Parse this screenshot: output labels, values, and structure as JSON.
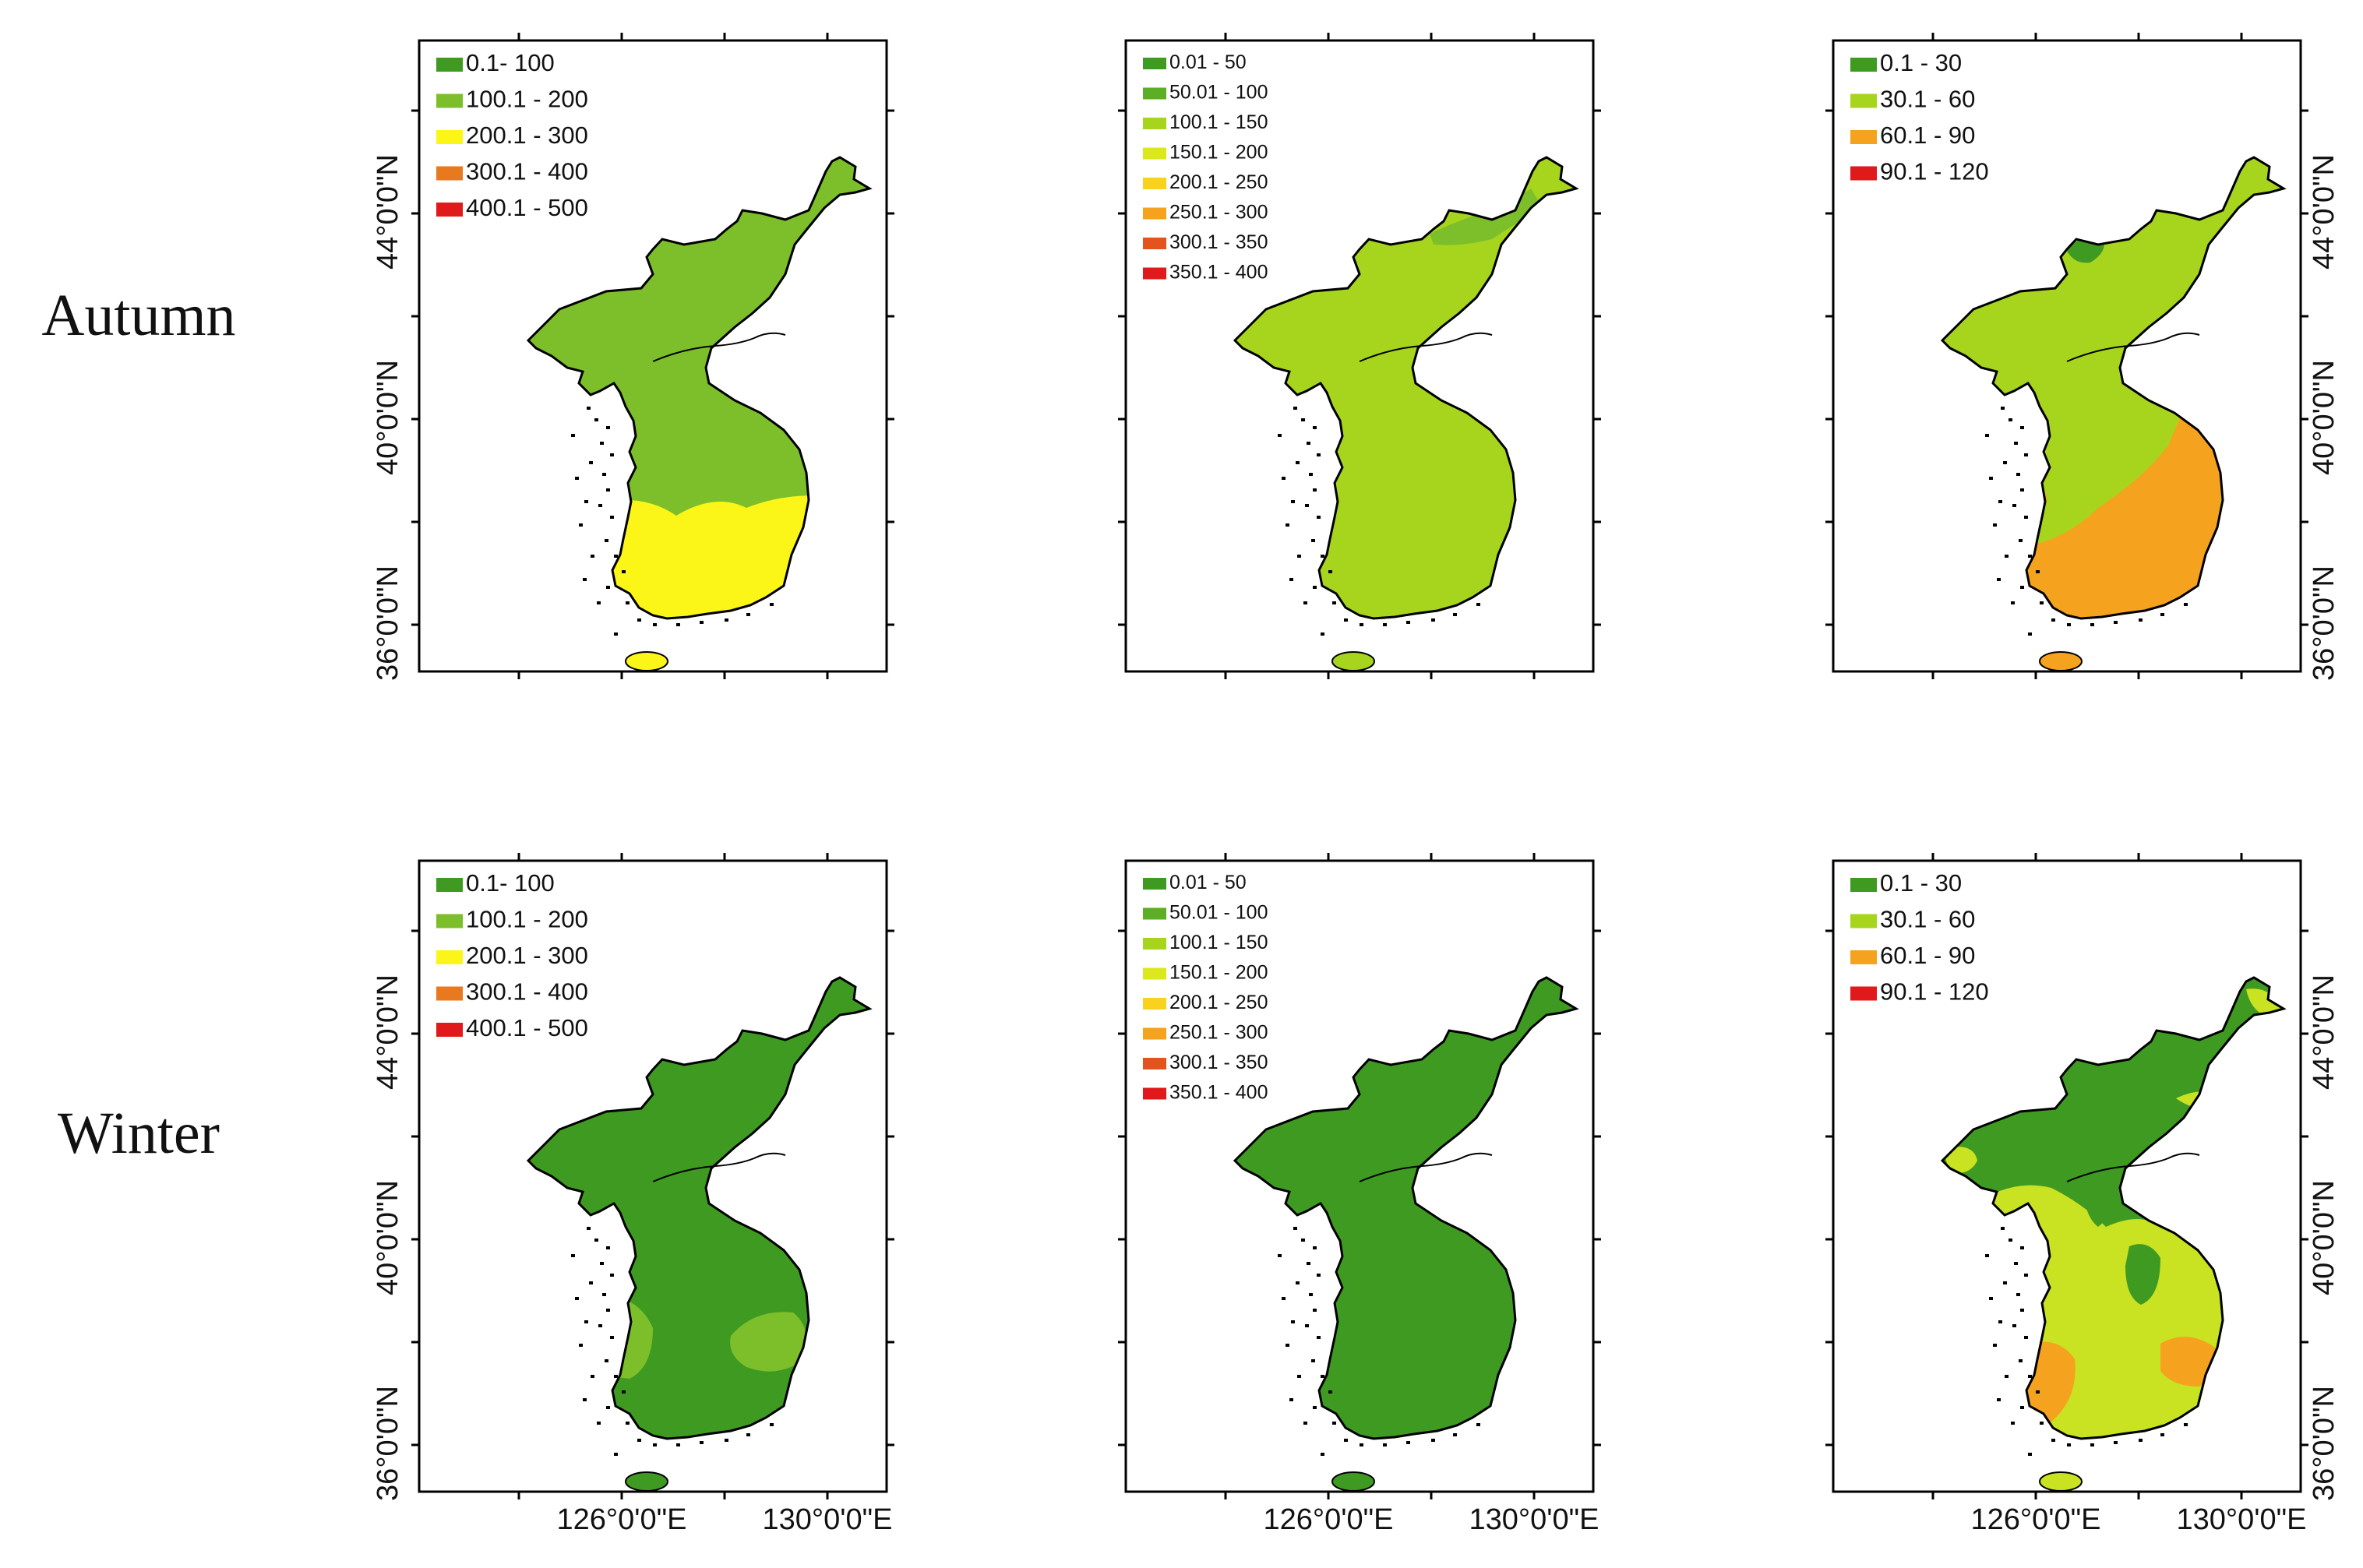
{
  "seasons": [
    "Autumn",
    "Winter"
  ],
  "axis_labels": {
    "lat_ticks": [
      "44°0'0\"N",
      "40°0'0\"N",
      "36°0'0\"N"
    ],
    "lon_ticks": [
      "126°0'0\"E",
      "130°0'0\"E"
    ]
  },
  "colors": {
    "ocean": "#ffffff",
    "outline": "#000000",
    "dark_green": "#3f9a22",
    "mid_green": "#7dbf2a",
    "light_green": "#a7d51e",
    "yellow_green": "#c9e221",
    "yellow": "#fbf518",
    "gold": "#f8d21c",
    "orange": "#f5a21e",
    "dark_orange": "#e8791f",
    "red_orange": "#e4531d",
    "red": "#e01a1a"
  },
  "legends": {
    "a": [
      {
        "label": "0.1- 100",
        "color": "#3f9a22"
      },
      {
        "label": "100.1 - 200",
        "color": "#7dbf2a"
      },
      {
        "label": "200.1 - 300",
        "color": "#fbf518"
      },
      {
        "label": "300.1 - 400",
        "color": "#e8791f"
      },
      {
        "label": "400.1 - 500",
        "color": "#e01a1a"
      }
    ],
    "b": [
      {
        "label": "0.01 - 50",
        "color": "#3f9a22"
      },
      {
        "label": "50.01 - 100",
        "color": "#5cae25"
      },
      {
        "label": "100.1 - 150",
        "color": "#a7d51e"
      },
      {
        "label": "150.1 - 200",
        "color": "#dbe81e"
      },
      {
        "label": "200.1 - 250",
        "color": "#f8d21c"
      },
      {
        "label": "250.1 - 300",
        "color": "#f5a21e"
      },
      {
        "label": "300.1 - 350",
        "color": "#e4531d"
      },
      {
        "label": "350.1 - 400",
        "color": "#e01a1a"
      }
    ],
    "c": [
      {
        "label": "0.1 - 30",
        "color": "#3f9a22"
      },
      {
        "label": "30.1 - 60",
        "color": "#a7d51e"
      },
      {
        "label": "60.1 - 90",
        "color": "#f5a21e"
      },
      {
        "label": "90.1 - 120",
        "color": "#e01a1a"
      }
    ]
  },
  "map_classes": {
    "autumn": {
      "a": {
        "base": "mid_green",
        "south_band": "yellow"
      },
      "b": {
        "base": "light_green",
        "northeast_patch": "mid_green"
      },
      "c": {
        "base": "light_green",
        "east_south": "orange",
        "north_patch": "dark_green"
      }
    },
    "winter": {
      "a": {
        "base": "dark_green",
        "south_patches": "mid_green"
      },
      "b": {
        "base": "dark_green"
      },
      "c": {
        "base": "dark_green",
        "south_region": "yellow_green",
        "south_patches": "orange"
      }
    }
  }
}
